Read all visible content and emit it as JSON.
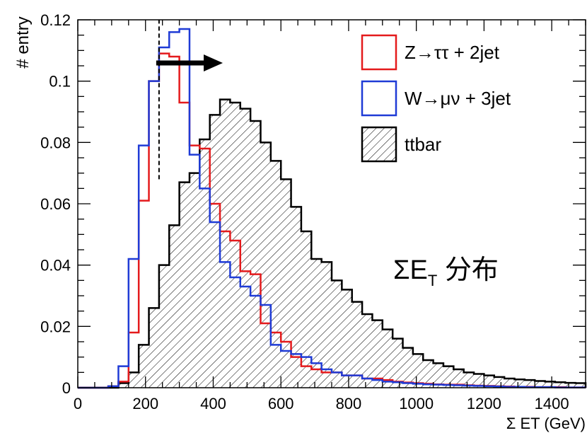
{
  "chart_data": {
    "type": "histogram",
    "xlabel": "Σ ET (GeV)",
    "ylabel": "# entry",
    "xlim": [
      0,
      1500
    ],
    "ylim": [
      0,
      0.12
    ],
    "x_ticks": [
      "0",
      "200",
      "400",
      "600",
      "800",
      "1000",
      "1200",
      "1400"
    ],
    "y_ticks": [
      "0",
      "0.02",
      "0.04",
      "0.06",
      "0.08",
      "0.1",
      "0.12"
    ],
    "bin_width": 30,
    "bin_start": 0,
    "series": [
      {
        "name": "Z→ττ + 2jet",
        "color": "#e41a1c",
        "fill": "none",
        "values": [
          0,
          0,
          0,
          0.0005,
          0.002,
          0.018,
          0.061,
          0.1,
          0.109,
          0.108,
          0.093,
          0.079,
          0.078,
          0.06,
          0.051,
          0.048,
          0.038,
          0.037,
          0.021,
          0.018,
          0.015,
          0.01,
          0.007,
          0.006,
          0.005,
          0.005,
          0.004,
          0.004,
          0.003,
          0.003,
          0.0025,
          0.002,
          0.0017,
          0.0015,
          0.0013,
          0.0011,
          0.001,
          0.001,
          0.0008,
          0.0007,
          0.0006,
          0.0005,
          0.0004,
          0.0003,
          0.0003,
          0.0002,
          0.0002,
          0.0002,
          0.0001,
          0.0001
        ]
      },
      {
        "name": "W→μν + 3jet",
        "color": "#1f3bd6",
        "fill": "none",
        "values": [
          0,
          0,
          0,
          0.0005,
          0.007,
          0.042,
          0.079,
          0.1,
          0.111,
          0.116,
          0.117,
          0.076,
          0.065,
          0.054,
          0.041,
          0.036,
          0.033,
          0.03,
          0.027,
          0.014,
          0.012,
          0.011,
          0.01,
          0.008,
          0.006,
          0.005,
          0.004,
          0.004,
          0.003,
          0.0025,
          0.002,
          0.0018,
          0.0015,
          0.0013,
          0.0011,
          0.001,
          0.0009,
          0.0008,
          0.0007,
          0.0006,
          0.0005,
          0.0004,
          0.0003,
          0.0003,
          0.0002,
          0.0002,
          0.0002,
          0.0001,
          0.0001,
          0.0001
        ]
      },
      {
        "name": "ttbar",
        "color": "#000000",
        "fill": "hatch",
        "values": [
          0,
          0,
          0,
          0,
          0.0015,
          0.005,
          0.014,
          0.026,
          0.04,
          0.053,
          0.067,
          0.07,
          0.081,
          0.089,
          0.094,
          0.093,
          0.091,
          0.087,
          0.08,
          0.074,
          0.068,
          0.059,
          0.051,
          0.042,
          0.041,
          0.035,
          0.032,
          0.028,
          0.024,
          0.022,
          0.019,
          0.016,
          0.013,
          0.011,
          0.009,
          0.008,
          0.007,
          0.006,
          0.005,
          0.0045,
          0.004,
          0.0035,
          0.003,
          0.0027,
          0.0025,
          0.0022,
          0.002,
          0.0018,
          0.0016,
          0.0015
        ]
      }
    ],
    "cut_value": 240,
    "annotation": "ΣE",
    "annotation_sub": "T",
    "annotation_tail": " 分布",
    "legend_position": "top-right",
    "grid": false
  }
}
